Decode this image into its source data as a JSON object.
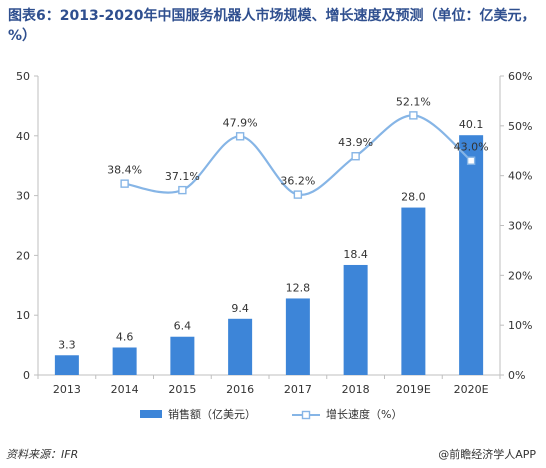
{
  "title": "图表6：2013-2020年中国服务机器人市场规模、增长速度及预测（单位：亿美元，%）",
  "source": "资料来源：IFR",
  "brand": "@前瞻经济学人APP",
  "colors": {
    "bar": "#3d85d8",
    "line": "#86b5e6",
    "title": "#2f4f8f"
  },
  "chart_data": {
    "type": "bar",
    "categories": [
      "2013",
      "2014",
      "2015",
      "2016",
      "2017",
      "2018",
      "2019E",
      "2020E"
    ],
    "series": [
      {
        "name": "销售额（亿美元）",
        "type": "bar",
        "axis": "left",
        "values": [
          3.3,
          4.6,
          6.4,
          9.4,
          12.8,
          18.4,
          28.0,
          40.1
        ],
        "labels": [
          "3.3",
          "4.6",
          "6.4",
          "9.4",
          "12.8",
          "18.4",
          "28.0",
          "40.1"
        ]
      },
      {
        "name": "增长速度（%）",
        "type": "line",
        "axis": "right",
        "values": [
          null,
          38.4,
          37.1,
          47.9,
          36.2,
          43.9,
          52.1,
          43.0
        ],
        "labels": [
          "",
          "38.4%",
          "37.1%",
          "47.9%",
          "36.2%",
          "43.9%",
          "52.1%",
          "43.0%"
        ]
      }
    ],
    "y_left": {
      "lim": [
        0,
        50
      ],
      "ticks": [
        "0",
        "10",
        "20",
        "30",
        "40",
        "50"
      ]
    },
    "y_right": {
      "lim": [
        0,
        60
      ],
      "ticks": [
        "0%",
        "10%",
        "20%",
        "30%",
        "40%",
        "50%",
        "60%"
      ]
    },
    "legend": "bottom",
    "grid": false
  }
}
